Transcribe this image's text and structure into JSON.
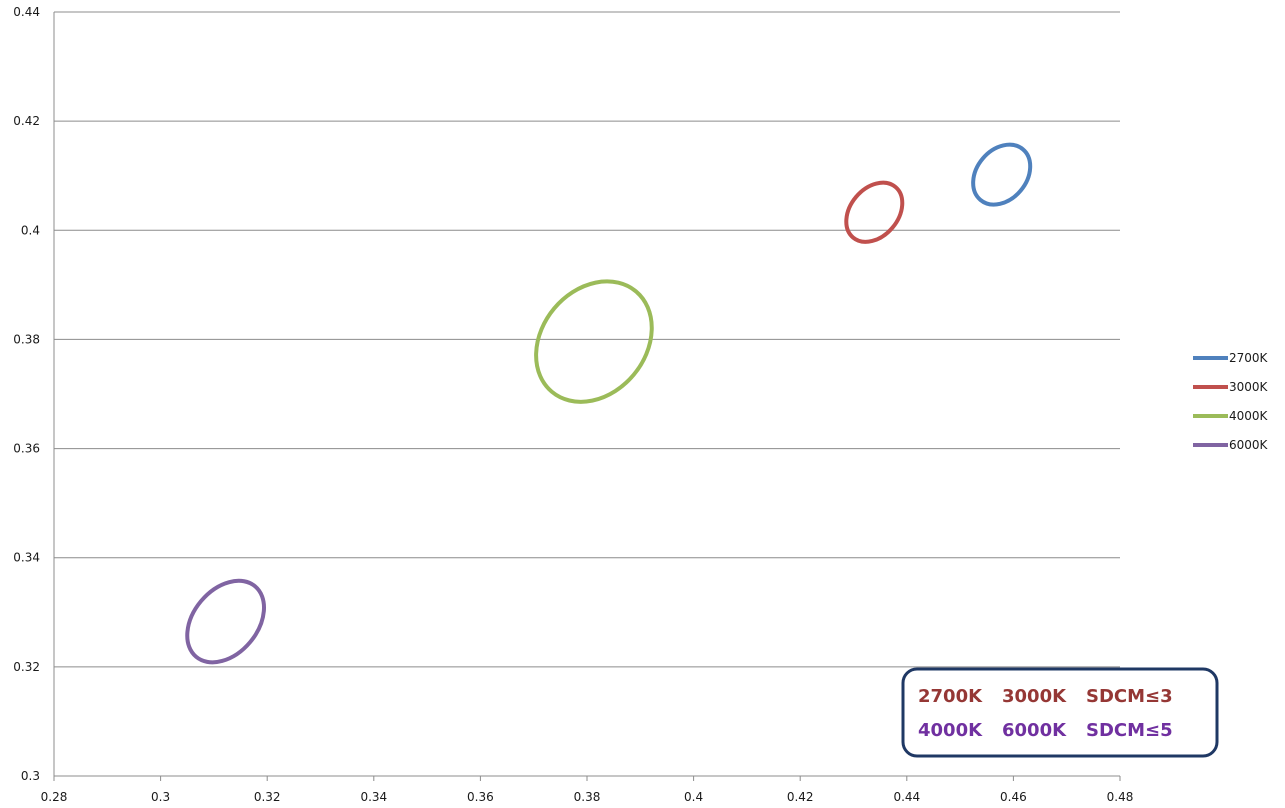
{
  "chart_data": {
    "type": "scatter",
    "xlim": [
      0.28,
      0.48
    ],
    "ylim": [
      0.3,
      0.44
    ],
    "x_ticks": [
      "0.28",
      "0.3",
      "0.32",
      "0.34",
      "0.36",
      "0.38",
      "0.4",
      "0.42",
      "0.44",
      "0.46",
      "0.48"
    ],
    "y_ticks": [
      "0.3",
      "0.32",
      "0.34",
      "0.36",
      "0.38",
      "0.4",
      "0.42",
      "0.44"
    ],
    "grid": "horizontal",
    "legend_position": "right",
    "series": [
      {
        "name": "2700K",
        "color": "#4f81bd",
        "shape": "ellipse",
        "center": [
          0.4578,
          0.4102
        ],
        "x_range": [
          0.4525,
          0.4632
        ],
        "y_range": [
          0.4033,
          0.4172
        ]
      },
      {
        "name": "3000K",
        "color": "#c0504d",
        "shape": "ellipse",
        "center": [
          0.4339,
          0.4033
        ],
        "x_range": [
          0.4287,
          0.4392
        ],
        "y_range": [
          0.3961,
          0.4103
        ]
      },
      {
        "name": "4000K",
        "color": "#9bbb59",
        "shape": "ellipse",
        "center": [
          0.3813,
          0.3796
        ],
        "x_range": [
          0.3705,
          0.3922
        ],
        "y_range": [
          0.3663,
          0.3931
        ]
      },
      {
        "name": "6000K",
        "color": "#8064a2",
        "shape": "ellipse",
        "center": [
          0.3122,
          0.3283
        ],
        "x_range": [
          0.305,
          0.3194
        ],
        "y_range": [
          0.3182,
          0.3384
        ]
      }
    ],
    "annotation": {
      "line1": {
        "a": "2700K",
        "b": "3000K",
        "c": "SDCM≤3",
        "color": "#953735"
      },
      "line2": {
        "a": "4000K",
        "b": "6000K",
        "c": "SDCM≤5",
        "color": "#7030a0"
      },
      "border_color": "#1f3864"
    }
  }
}
